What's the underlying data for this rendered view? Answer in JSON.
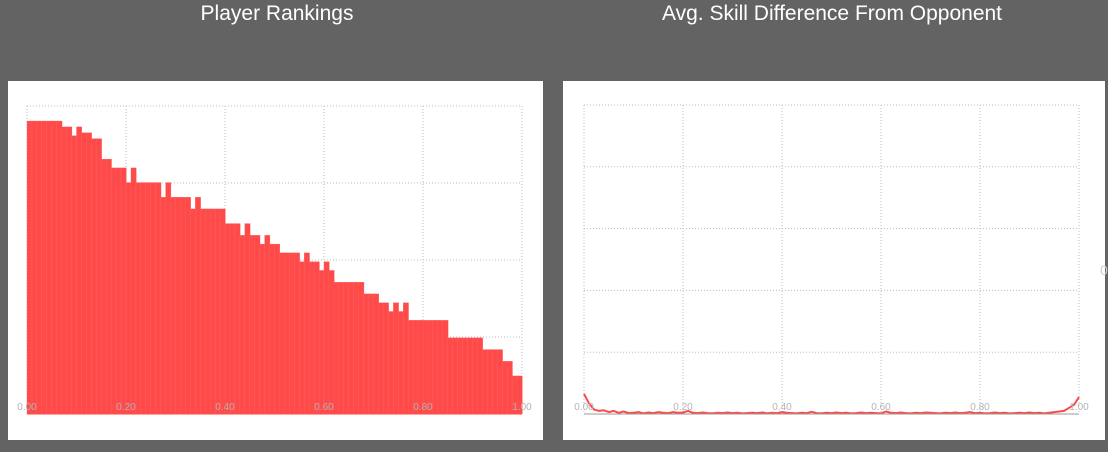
{
  "titles": {
    "left": "Player Rankings",
    "right": "Avg. Skill Difference From Opponent"
  },
  "colors": {
    "bar": "#ff4a4a",
    "line": "#ff4a4a",
    "grid": "#bdbdbd",
    "tick": "#b3b3b3",
    "background": "#636363"
  },
  "chart_data": [
    {
      "type": "bar",
      "title": "Player Rankings",
      "xlim": [
        0,
        1
      ],
      "ylim": [
        0,
        1
      ],
      "grid": true,
      "xticks": [
        "0.00",
        "0.20",
        "0.40",
        "0.60",
        "0.80",
        "1.00"
      ],
      "x": [
        0.0,
        0.01,
        0.02,
        0.03,
        0.04,
        0.05,
        0.06,
        0.07,
        0.08,
        0.09,
        0.1,
        0.11,
        0.12,
        0.13,
        0.14,
        0.15,
        0.16,
        0.17,
        0.18,
        0.19,
        0.2,
        0.21,
        0.22,
        0.23,
        0.24,
        0.25,
        0.26,
        0.27,
        0.28,
        0.29,
        0.3,
        0.31,
        0.32,
        0.33,
        0.34,
        0.35,
        0.36,
        0.37,
        0.38,
        0.39,
        0.4,
        0.41,
        0.42,
        0.43,
        0.44,
        0.45,
        0.46,
        0.47,
        0.48,
        0.49,
        0.5,
        0.51,
        0.52,
        0.53,
        0.54,
        0.55,
        0.56,
        0.57,
        0.58,
        0.59,
        0.6,
        0.61,
        0.62,
        0.63,
        0.64,
        0.65,
        0.66,
        0.67,
        0.68,
        0.69,
        0.7,
        0.71,
        0.72,
        0.73,
        0.74,
        0.75,
        0.76,
        0.77,
        0.78,
        0.79,
        0.8,
        0.81,
        0.82,
        0.83,
        0.84,
        0.85,
        0.86,
        0.87,
        0.88,
        0.89,
        0.9,
        0.91,
        0.92,
        0.93,
        0.94,
        0.95,
        0.96,
        0.97,
        0.98,
        0.99
      ],
      "values": [
        1.0,
        1.0,
        1.0,
        1.0,
        1.0,
        1.0,
        1.0,
        0.98,
        0.98,
        0.95,
        0.98,
        0.96,
        0.96,
        0.94,
        0.94,
        0.87,
        0.87,
        0.84,
        0.84,
        0.84,
        0.79,
        0.84,
        0.79,
        0.79,
        0.79,
        0.79,
        0.79,
        0.74,
        0.79,
        0.74,
        0.74,
        0.74,
        0.74,
        0.7,
        0.74,
        0.7,
        0.7,
        0.7,
        0.7,
        0.7,
        0.65,
        0.65,
        0.65,
        0.61,
        0.65,
        0.61,
        0.61,
        0.58,
        0.61,
        0.58,
        0.58,
        0.55,
        0.55,
        0.55,
        0.55,
        0.52,
        0.55,
        0.52,
        0.52,
        0.49,
        0.52,
        0.49,
        0.45,
        0.45,
        0.45,
        0.45,
        0.45,
        0.45,
        0.41,
        0.41,
        0.41,
        0.38,
        0.38,
        0.35,
        0.38,
        0.35,
        0.38,
        0.32,
        0.32,
        0.32,
        0.32,
        0.32,
        0.32,
        0.32,
        0.32,
        0.26,
        0.26,
        0.26,
        0.26,
        0.26,
        0.26,
        0.26,
        0.22,
        0.22,
        0.22,
        0.22,
        0.18,
        0.18,
        0.13,
        0.13
      ]
    },
    {
      "type": "line",
      "title": "Avg. Skill Difference From Opponent",
      "xlim": [
        0,
        1
      ],
      "ylim": [
        0,
        1
      ],
      "grid": true,
      "xticks": [
        "0.00",
        "0.20",
        "0.40",
        "0.60",
        "0.80",
        "1.00"
      ],
      "x": [
        0.0,
        0.01,
        0.02,
        0.03,
        0.04,
        0.05,
        0.06,
        0.07,
        0.08,
        0.09,
        0.1,
        0.11,
        0.12,
        0.13,
        0.14,
        0.15,
        0.16,
        0.17,
        0.18,
        0.19,
        0.2,
        0.21,
        0.22,
        0.23,
        0.24,
        0.25,
        0.26,
        0.27,
        0.28,
        0.29,
        0.3,
        0.31,
        0.32,
        0.33,
        0.34,
        0.35,
        0.36,
        0.37,
        0.38,
        0.39,
        0.4,
        0.41,
        0.42,
        0.43,
        0.44,
        0.45,
        0.46,
        0.47,
        0.48,
        0.49,
        0.5,
        0.51,
        0.52,
        0.53,
        0.54,
        0.55,
        0.56,
        0.57,
        0.58,
        0.59,
        0.6,
        0.61,
        0.62,
        0.63,
        0.64,
        0.65,
        0.66,
        0.67,
        0.68,
        0.69,
        0.7,
        0.71,
        0.72,
        0.73,
        0.74,
        0.75,
        0.76,
        0.77,
        0.78,
        0.79,
        0.8,
        0.81,
        0.82,
        0.83,
        0.84,
        0.85,
        0.86,
        0.87,
        0.88,
        0.89,
        0.9,
        0.91,
        0.92,
        0.93,
        0.94,
        0.95,
        0.96,
        0.97,
        0.98,
        0.99,
        1.0
      ],
      "values": [
        0.065,
        0.035,
        0.015,
        0.01,
        0.012,
        0.006,
        0.01,
        0.004,
        0.008,
        0.003,
        0.004,
        0.006,
        0.002,
        0.005,
        0.003,
        0.006,
        0.004,
        0.003,
        0.006,
        0.004,
        0.005,
        0.01,
        0.004,
        0.003,
        0.005,
        0.003,
        0.002,
        0.004,
        0.003,
        0.005,
        0.003,
        0.004,
        0.002,
        0.003,
        0.004,
        0.003,
        0.005,
        0.002,
        0.004,
        0.003,
        0.006,
        0.004,
        0.003,
        0.002,
        0.004,
        0.003,
        0.007,
        0.003,
        0.002,
        0.004,
        0.003,
        0.005,
        0.003,
        0.004,
        0.002,
        0.003,
        0.005,
        0.003,
        0.004,
        0.003,
        0.002,
        0.008,
        0.004,
        0.003,
        0.005,
        0.003,
        0.002,
        0.004,
        0.003,
        0.005,
        0.004,
        0.003,
        0.002,
        0.004,
        0.003,
        0.005,
        0.003,
        0.004,
        0.006,
        0.003,
        0.004,
        0.002,
        0.003,
        0.005,
        0.003,
        0.004,
        0.002,
        0.003,
        0.004,
        0.003,
        0.005,
        0.003,
        0.004,
        0.002,
        0.004,
        0.006,
        0.008,
        0.01,
        0.02,
        0.03,
        0.055
      ]
    }
  ],
  "stray_text": "0"
}
